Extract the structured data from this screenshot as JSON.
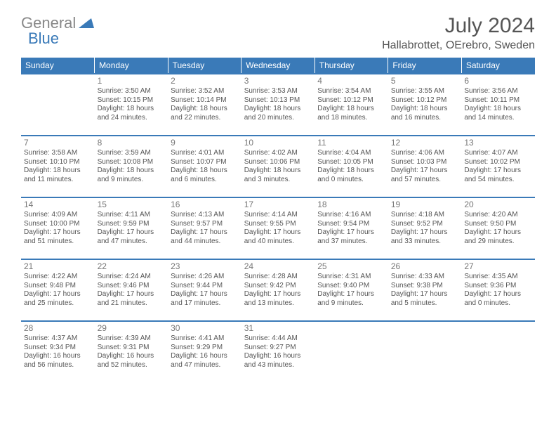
{
  "brand": {
    "part1": "General",
    "part2": "Blue"
  },
  "title": "July 2024",
  "location": "Hallabrottet, OErebro, Sweden",
  "colors": {
    "header_bg": "#3a7ab8",
    "text": "#555555",
    "rule": "#3a7ab8"
  },
  "day_headers": [
    "Sunday",
    "Monday",
    "Tuesday",
    "Wednesday",
    "Thursday",
    "Friday",
    "Saturday"
  ],
  "weeks": [
    [
      null,
      {
        "n": "1",
        "sr": "Sunrise: 3:50 AM",
        "ss": "Sunset: 10:15 PM",
        "d1": "Daylight: 18 hours",
        "d2": "and 24 minutes."
      },
      {
        "n": "2",
        "sr": "Sunrise: 3:52 AM",
        "ss": "Sunset: 10:14 PM",
        "d1": "Daylight: 18 hours",
        "d2": "and 22 minutes."
      },
      {
        "n": "3",
        "sr": "Sunrise: 3:53 AM",
        "ss": "Sunset: 10:13 PM",
        "d1": "Daylight: 18 hours",
        "d2": "and 20 minutes."
      },
      {
        "n": "4",
        "sr": "Sunrise: 3:54 AM",
        "ss": "Sunset: 10:12 PM",
        "d1": "Daylight: 18 hours",
        "d2": "and 18 minutes."
      },
      {
        "n": "5",
        "sr": "Sunrise: 3:55 AM",
        "ss": "Sunset: 10:12 PM",
        "d1": "Daylight: 18 hours",
        "d2": "and 16 minutes."
      },
      {
        "n": "6",
        "sr": "Sunrise: 3:56 AM",
        "ss": "Sunset: 10:11 PM",
        "d1": "Daylight: 18 hours",
        "d2": "and 14 minutes."
      }
    ],
    [
      {
        "n": "7",
        "sr": "Sunrise: 3:58 AM",
        "ss": "Sunset: 10:10 PM",
        "d1": "Daylight: 18 hours",
        "d2": "and 11 minutes."
      },
      {
        "n": "8",
        "sr": "Sunrise: 3:59 AM",
        "ss": "Sunset: 10:08 PM",
        "d1": "Daylight: 18 hours",
        "d2": "and 9 minutes."
      },
      {
        "n": "9",
        "sr": "Sunrise: 4:01 AM",
        "ss": "Sunset: 10:07 PM",
        "d1": "Daylight: 18 hours",
        "d2": "and 6 minutes."
      },
      {
        "n": "10",
        "sr": "Sunrise: 4:02 AM",
        "ss": "Sunset: 10:06 PM",
        "d1": "Daylight: 18 hours",
        "d2": "and 3 minutes."
      },
      {
        "n": "11",
        "sr": "Sunrise: 4:04 AM",
        "ss": "Sunset: 10:05 PM",
        "d1": "Daylight: 18 hours",
        "d2": "and 0 minutes."
      },
      {
        "n": "12",
        "sr": "Sunrise: 4:06 AM",
        "ss": "Sunset: 10:03 PM",
        "d1": "Daylight: 17 hours",
        "d2": "and 57 minutes."
      },
      {
        "n": "13",
        "sr": "Sunrise: 4:07 AM",
        "ss": "Sunset: 10:02 PM",
        "d1": "Daylight: 17 hours",
        "d2": "and 54 minutes."
      }
    ],
    [
      {
        "n": "14",
        "sr": "Sunrise: 4:09 AM",
        "ss": "Sunset: 10:00 PM",
        "d1": "Daylight: 17 hours",
        "d2": "and 51 minutes."
      },
      {
        "n": "15",
        "sr": "Sunrise: 4:11 AM",
        "ss": "Sunset: 9:59 PM",
        "d1": "Daylight: 17 hours",
        "d2": "and 47 minutes."
      },
      {
        "n": "16",
        "sr": "Sunrise: 4:13 AM",
        "ss": "Sunset: 9:57 PM",
        "d1": "Daylight: 17 hours",
        "d2": "and 44 minutes."
      },
      {
        "n": "17",
        "sr": "Sunrise: 4:14 AM",
        "ss": "Sunset: 9:55 PM",
        "d1": "Daylight: 17 hours",
        "d2": "and 40 minutes."
      },
      {
        "n": "18",
        "sr": "Sunrise: 4:16 AM",
        "ss": "Sunset: 9:54 PM",
        "d1": "Daylight: 17 hours",
        "d2": "and 37 minutes."
      },
      {
        "n": "19",
        "sr": "Sunrise: 4:18 AM",
        "ss": "Sunset: 9:52 PM",
        "d1": "Daylight: 17 hours",
        "d2": "and 33 minutes."
      },
      {
        "n": "20",
        "sr": "Sunrise: 4:20 AM",
        "ss": "Sunset: 9:50 PM",
        "d1": "Daylight: 17 hours",
        "d2": "and 29 minutes."
      }
    ],
    [
      {
        "n": "21",
        "sr": "Sunrise: 4:22 AM",
        "ss": "Sunset: 9:48 PM",
        "d1": "Daylight: 17 hours",
        "d2": "and 25 minutes."
      },
      {
        "n": "22",
        "sr": "Sunrise: 4:24 AM",
        "ss": "Sunset: 9:46 PM",
        "d1": "Daylight: 17 hours",
        "d2": "and 21 minutes."
      },
      {
        "n": "23",
        "sr": "Sunrise: 4:26 AM",
        "ss": "Sunset: 9:44 PM",
        "d1": "Daylight: 17 hours",
        "d2": "and 17 minutes."
      },
      {
        "n": "24",
        "sr": "Sunrise: 4:28 AM",
        "ss": "Sunset: 9:42 PM",
        "d1": "Daylight: 17 hours",
        "d2": "and 13 minutes."
      },
      {
        "n": "25",
        "sr": "Sunrise: 4:31 AM",
        "ss": "Sunset: 9:40 PM",
        "d1": "Daylight: 17 hours",
        "d2": "and 9 minutes."
      },
      {
        "n": "26",
        "sr": "Sunrise: 4:33 AM",
        "ss": "Sunset: 9:38 PM",
        "d1": "Daylight: 17 hours",
        "d2": "and 5 minutes."
      },
      {
        "n": "27",
        "sr": "Sunrise: 4:35 AM",
        "ss": "Sunset: 9:36 PM",
        "d1": "Daylight: 17 hours",
        "d2": "and 0 minutes."
      }
    ],
    [
      {
        "n": "28",
        "sr": "Sunrise: 4:37 AM",
        "ss": "Sunset: 9:34 PM",
        "d1": "Daylight: 16 hours",
        "d2": "and 56 minutes."
      },
      {
        "n": "29",
        "sr": "Sunrise: 4:39 AM",
        "ss": "Sunset: 9:31 PM",
        "d1": "Daylight: 16 hours",
        "d2": "and 52 minutes."
      },
      {
        "n": "30",
        "sr": "Sunrise: 4:41 AM",
        "ss": "Sunset: 9:29 PM",
        "d1": "Daylight: 16 hours",
        "d2": "and 47 minutes."
      },
      {
        "n": "31",
        "sr": "Sunrise: 4:44 AM",
        "ss": "Sunset: 9:27 PM",
        "d1": "Daylight: 16 hours",
        "d2": "and 43 minutes."
      },
      null,
      null,
      null
    ]
  ]
}
